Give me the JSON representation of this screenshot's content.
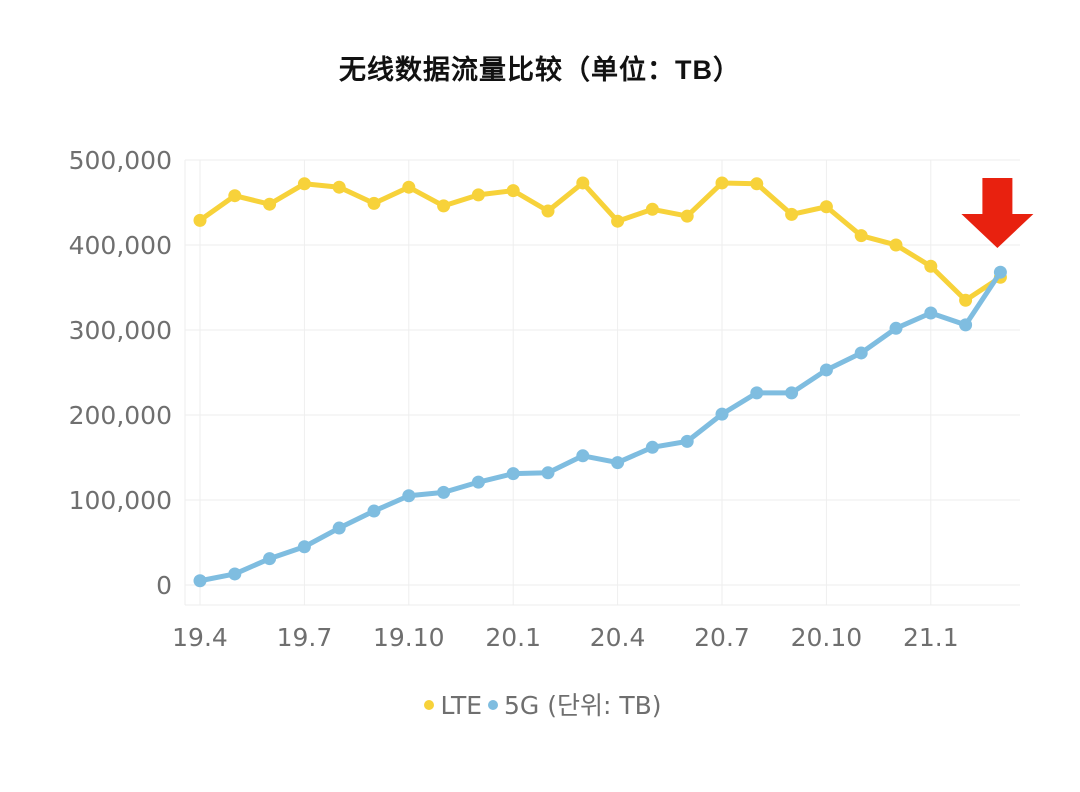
{
  "title": "无线数据流量比较（单位：TB）",
  "chart_data": {
    "type": "line",
    "title": "无线数据流量比较（单位：TB）",
    "xlabel": "",
    "ylabel": "",
    "x": [
      "19.4",
      "19.5",
      "19.6",
      "19.7",
      "19.8",
      "19.9",
      "19.10",
      "19.11",
      "19.12",
      "20.1",
      "20.2",
      "20.3",
      "20.4",
      "20.5",
      "20.6",
      "20.7",
      "20.8",
      "20.9",
      "20.10",
      "20.11",
      "20.12",
      "21.1",
      "21.2",
      "21.3"
    ],
    "x_tick_labels": [
      "19.4",
      "19.7",
      "19.10",
      "20.1",
      "20.4",
      "20.7",
      "20.10",
      "21.1"
    ],
    "y_tick_labels": [
      "0",
      "100,000",
      "200,000",
      "300,000",
      "400,000",
      "500,000"
    ],
    "y_ticks": [
      0,
      100000,
      200000,
      300000,
      400000,
      500000
    ],
    "ylim": [
      0,
      500000
    ],
    "grid": true,
    "legend_position": "bottom-center",
    "series": [
      {
        "name": "LTE",
        "color": "#f7d23a",
        "values": [
          429000,
          458000,
          448000,
          472000,
          468000,
          449000,
          468000,
          446000,
          459000,
          464000,
          440000,
          473000,
          428000,
          442000,
          434000,
          473000,
          472000,
          436000,
          445000,
          411000,
          400000,
          375000,
          335000,
          362000
        ]
      },
      {
        "name": "5G",
        "color": "#7fbde0",
        "values": [
          5000,
          13000,
          31000,
          45000,
          67000,
          87000,
          105000,
          109000,
          121000,
          131000,
          132000,
          152000,
          144000,
          162000,
          169000,
          201000,
          226000,
          226000,
          253000,
          273000,
          302000,
          320000,
          306000,
          368000
        ]
      }
    ],
    "annotations": [
      {
        "type": "arrow-down",
        "color": "#e8210f",
        "target": "21.3"
      }
    ]
  },
  "legend": {
    "items": [
      {
        "label": "LTE",
        "color": "#f7d23a"
      },
      {
        "label": "5G (단위: TB)",
        "color": "#7fbde0"
      }
    ]
  }
}
